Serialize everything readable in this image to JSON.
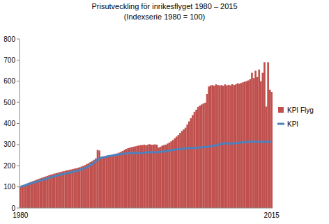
{
  "chart_data": {
    "type": "bar",
    "title": "Prisutveckling för inrikesflyget 1980 – 2015",
    "subtitle": "(Indexserie 1980 = 100)",
    "categories": [
      "1980",
      null,
      null,
      null,
      null,
      null,
      null,
      null,
      null,
      null,
      null,
      null,
      null,
      null,
      null,
      null,
      null,
      null,
      null,
      null,
      null,
      null,
      null,
      null,
      null,
      null,
      null,
      null,
      null,
      null,
      null,
      null,
      null,
      null,
      null,
      null,
      null,
      null,
      null,
      null,
      null,
      null,
      null,
      null,
      null,
      null,
      null,
      null,
      null,
      null,
      null,
      null,
      null,
      null,
      null,
      null,
      null,
      null,
      null,
      null,
      null,
      null,
      null,
      null,
      null,
      null,
      null,
      null,
      null,
      null,
      null,
      null,
      null,
      null,
      null,
      null,
      null,
      null,
      null,
      null,
      null,
      null,
      null,
      null,
      null,
      null,
      null,
      null,
      null,
      null,
      null,
      null,
      null,
      null,
      null,
      null,
      null,
      null,
      null,
      null,
      null,
      null,
      null,
      null,
      null,
      null,
      null,
      null,
      null,
      null,
      null,
      null,
      null,
      null,
      null,
      null,
      null,
      null,
      null,
      null,
      null,
      null,
      null,
      null,
      null,
      null,
      null,
      null,
      null,
      null,
      null,
      null,
      null,
      null,
      null,
      null,
      null,
      null,
      null,
      null,
      "2015"
    ],
    "series": [
      {
        "name": "KPI Flyg",
        "type": "bar",
        "color": "#c0504d",
        "values": [
          100,
          104,
          108,
          112,
          116,
          120,
          124,
          127,
          130,
          134,
          137,
          140,
          143,
          146,
          149,
          152,
          155,
          158,
          160,
          163,
          165,
          167,
          170,
          172,
          174,
          176,
          178,
          180,
          182,
          184,
          186,
          188,
          190,
          193,
          196,
          199,
          203,
          208,
          212,
          217,
          222,
          228,
          235,
          275,
          272,
          240,
          238,
          242,
          245,
          247,
          244,
          250,
          252,
          255,
          258,
          262,
          266,
          270,
          275,
          280,
          283,
          286,
          288,
          290,
          292,
          294,
          296,
          298,
          298,
          300,
          297,
          300,
          302,
          299,
          300,
          301,
          300,
          286,
          290,
          295,
          298,
          300,
          305,
          310,
          315,
          322,
          330,
          338,
          345,
          355,
          365,
          372,
          380,
          395,
          410,
          425,
          440,
          455,
          465,
          478,
          485,
          490,
          495,
          498,
          540,
          575,
          580,
          582,
          578,
          585,
          582,
          580,
          582,
          578,
          585,
          580,
          583,
          580,
          586,
          582,
          585,
          590,
          588,
          592,
          595,
          598,
          600,
          604,
          610,
          640,
          615,
          650,
          620,
          655,
          600,
          640,
          690,
          480,
          690,
          560,
          550
        ]
      },
      {
        "name": "KPI",
        "type": "line",
        "color": "#4f81bd",
        "values": [
          100,
          103,
          106,
          109,
          112,
          115,
          117,
          120,
          122,
          124,
          127,
          130,
          132,
          135,
          138,
          140,
          143,
          146,
          148,
          150,
          153,
          155,
          157,
          159,
          161,
          163,
          165,
          167,
          169,
          171,
          173,
          175,
          177,
          180,
          183,
          186,
          190,
          194,
          198,
          202,
          207,
          215,
          222,
          228,
          234,
          238,
          240,
          241,
          243,
          245,
          246,
          248,
          250,
          252,
          253,
          254,
          255,
          256,
          257,
          258,
          259,
          260,
          260,
          261,
          261,
          261,
          260,
          260,
          261,
          262,
          263,
          263,
          264,
          264,
          264,
          263,
          264,
          265,
          266,
          267,
          268,
          269,
          270,
          271,
          273,
          275,
          276,
          277,
          278,
          279,
          280,
          281,
          282,
          283,
          283,
          284,
          284,
          285,
          285,
          286,
          286,
          287,
          288,
          289,
          290,
          291,
          292,
          294,
          295,
          297,
          299,
          301,
          303,
          305,
          307,
          306,
          304,
          305,
          305,
          306,
          307,
          308,
          309,
          310,
          311,
          312,
          313,
          313,
          314,
          314,
          314,
          313,
          314,
          314,
          314,
          313,
          313,
          313,
          314,
          314,
          313
        ]
      }
    ],
    "ylim": [
      0,
      800
    ],
    "yticks": [
      0,
      100,
      200,
      300,
      400,
      500,
      600,
      700,
      800
    ],
    "grid": false,
    "legend": "right"
  }
}
